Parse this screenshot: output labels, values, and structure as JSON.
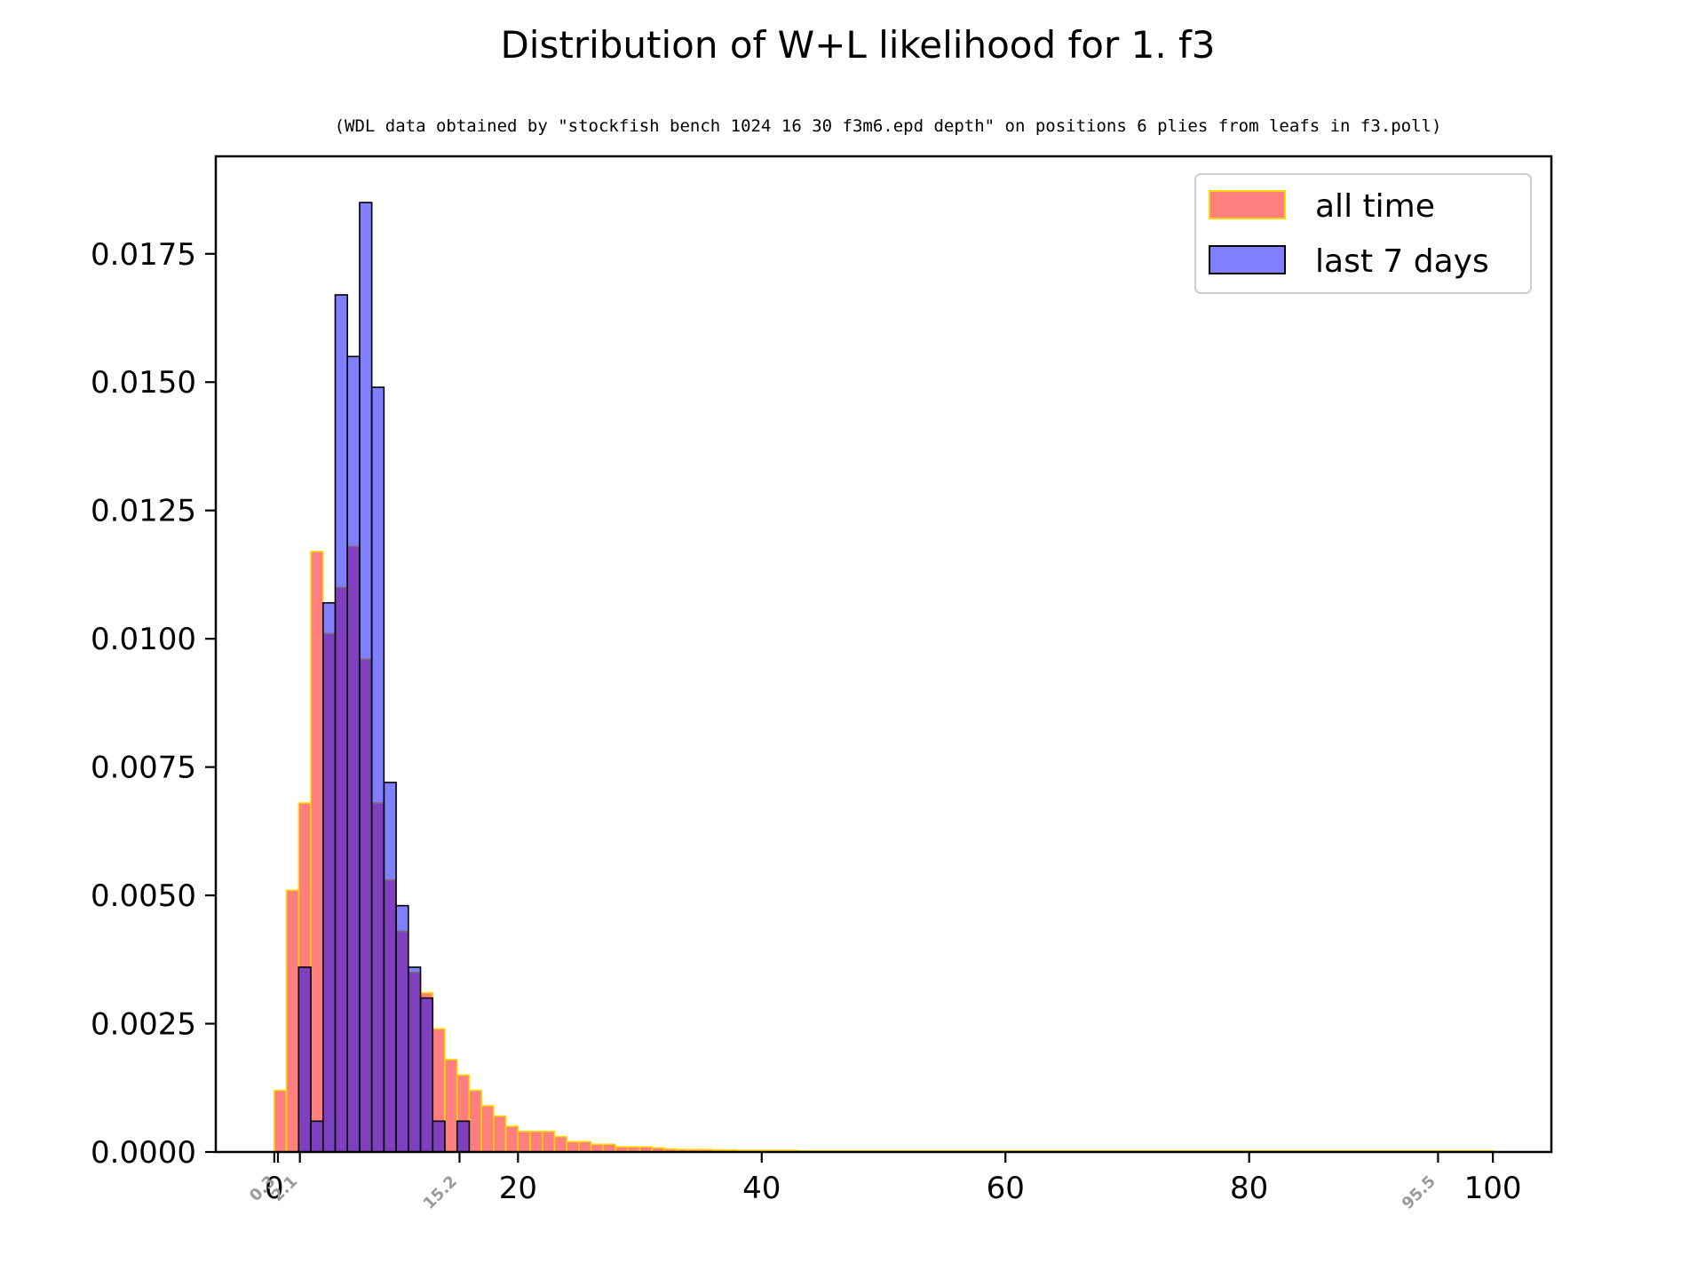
{
  "chart_data": {
    "type": "bar",
    "title": "Distribution of W+L likelihood for 1. f3",
    "subtitle": "(WDL data obtained by \"stockfish bench 1024 16 30 f3m6.epd depth\" on positions 6 plies from leafs in f3.poll)",
    "xlabel": "",
    "ylabel": "",
    "xlim": [
      -4.8,
      104.8
    ],
    "ylim": [
      0,
      0.0194
    ],
    "x_ticks": [
      0,
      20,
      40,
      60,
      80,
      100
    ],
    "x_tick_labels": [
      "0",
      "20",
      "40",
      "60",
      "80",
      "100"
    ],
    "y_ticks": [
      0,
      0.0025,
      0.005,
      0.0075,
      0.01,
      0.0125,
      0.015,
      0.0175
    ],
    "y_tick_labels": [
      "0.0000",
      "0.0025",
      "0.0050",
      "0.0075",
      "0.0100",
      "0.0125",
      "0.0150",
      "0.0175"
    ],
    "marker_ticks": [
      0.3,
      2.1,
      15.2,
      95.5
    ],
    "marker_tick_labels": [
      "0.3",
      "2.1",
      "15.2",
      "95.5"
    ],
    "bin_start": 0,
    "bin_width": 1,
    "legend_position": "top-right",
    "series": [
      {
        "name": "all time",
        "fill": "#ff0000",
        "fill_opacity": 0.5,
        "edge": "#ffd700",
        "values": [
          0.0012,
          0.0051,
          0.0068,
          0.0117,
          0.0101,
          0.011,
          0.0118,
          0.0096,
          0.0068,
          0.0053,
          0.0043,
          0.0035,
          0.0031,
          0.0024,
          0.0018,
          0.0015,
          0.0012,
          0.0009,
          0.0007,
          0.0005,
          0.0004,
          0.0004,
          0.0004,
          0.0003,
          0.0002,
          0.0002,
          0.00015,
          0.00015,
          0.0001,
          0.0001,
          0.0001,
          8e-05,
          6e-05,
          5e-05,
          5e-05,
          5e-05,
          4e-05,
          4e-05,
          3e-05,
          3e-05,
          3e-05,
          3e-05,
          3e-05,
          2e-05,
          2e-05,
          2e-05,
          2e-05,
          2e-05,
          2e-05,
          2e-05,
          2e-05,
          2e-05,
          2e-05,
          2e-05,
          2e-05,
          2e-05,
          2e-05,
          2e-05,
          2e-05,
          2e-05,
          2e-05,
          2e-05,
          2e-05,
          2e-05,
          2e-05,
          2e-05,
          2e-05,
          2e-05,
          2e-05,
          2e-05,
          2e-05,
          2e-05,
          2e-05,
          2e-05,
          2e-05,
          2e-05,
          2e-05,
          2e-05,
          2e-05,
          2e-05,
          2e-05,
          2e-05,
          2e-05,
          2e-05,
          2e-05,
          2e-05,
          2e-05,
          2e-05,
          2e-05,
          2e-05,
          2e-05,
          2e-05,
          2e-05,
          2e-05,
          2e-05,
          2e-05,
          2e-05,
          2e-05,
          2e-05,
          2e-05
        ]
      },
      {
        "name": "last 7 days",
        "fill": "#0000ff",
        "fill_opacity": 0.5,
        "edge": "#000000",
        "values": [
          0,
          0,
          0.0036,
          0.0006,
          0.0107,
          0.0167,
          0.0155,
          0.0185,
          0.0149,
          0.0072,
          0.0048,
          0.0036,
          0.003,
          0.0006,
          0,
          0.0006
        ]
      }
    ]
  }
}
